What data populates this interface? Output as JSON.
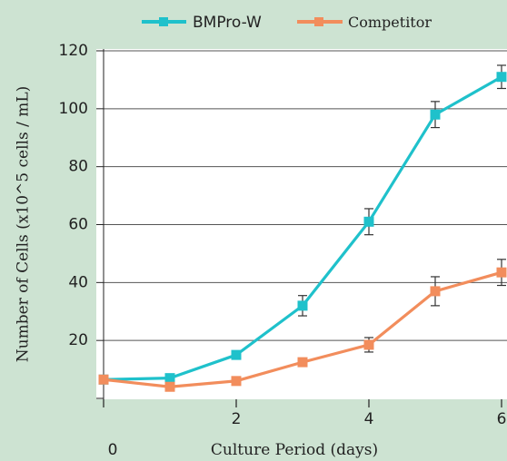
{
  "chart_data": {
    "type": "line",
    "xlabel": "Culture Period (days)",
    "ylabel": "Number of Cells (x10^5 cells / mL)",
    "x": [
      0,
      1,
      2,
      3,
      4,
      5,
      6
    ],
    "xlim": [
      0,
      6
    ],
    "ylim": [
      0,
      120
    ],
    "x_ticks": [
      2,
      4,
      6
    ],
    "x_origin_label": "0",
    "y_ticks": [
      20,
      40,
      60,
      80,
      100,
      120
    ],
    "grid": "horizontal",
    "legend": "top",
    "series": [
      {
        "name": "BMPro-W",
        "color": "#1fc1cb",
        "values": [
          6.5,
          7,
          15,
          32,
          61,
          98,
          111
        ],
        "errors": [
          0,
          0,
          0,
          3.5,
          4.5,
          4.5,
          4
        ]
      },
      {
        "name": "Competitor",
        "color": "#f28d5c",
        "values": [
          6.5,
          4,
          6,
          12.5,
          18.5,
          37,
          43.5
        ],
        "errors": [
          0,
          0,
          0,
          0,
          2.5,
          5,
          4.5
        ]
      }
    ]
  }
}
